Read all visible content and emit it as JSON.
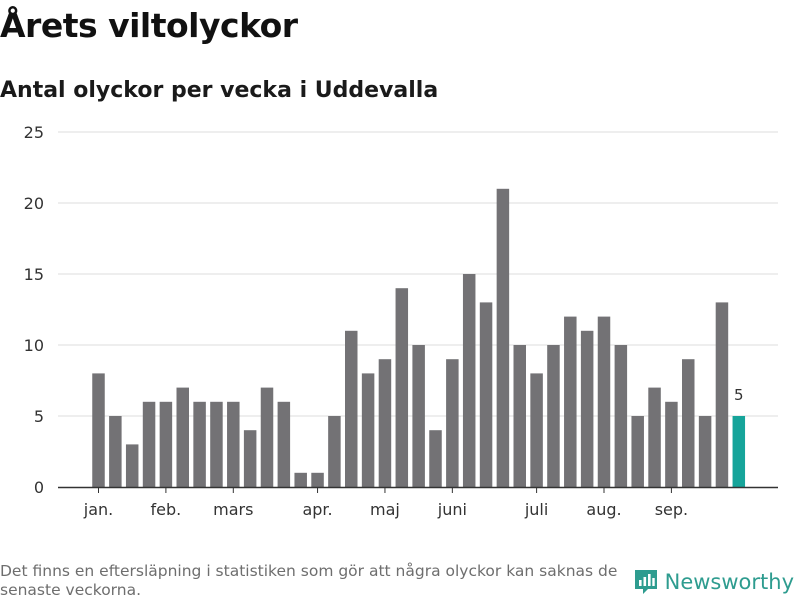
{
  "header": {
    "title": "Årets viltolyckor",
    "subtitle": "Antal olyckor per vecka i Uddevalla"
  },
  "footer": {
    "note": "Det finns en eftersläpning i statistiken som gör att några olyckor kan saknas de senaste veckorna.",
    "brand": "Newsworthy"
  },
  "colors": {
    "bar": "#737275",
    "highlight": "#16a49a",
    "grid": "#dddddd",
    "axis": "#333333",
    "brand": "#2e9c8f"
  },
  "chart_data": {
    "type": "bar",
    "title": "Antal olyckor per vecka i Uddevalla",
    "x_unit": "week",
    "values": [
      8,
      5,
      3,
      6,
      6,
      7,
      6,
      6,
      6,
      4,
      7,
      6,
      1,
      1,
      5,
      11,
      8,
      9,
      14,
      10,
      4,
      9,
      15,
      13,
      21,
      10,
      8,
      10,
      12,
      11,
      12,
      10,
      5,
      7,
      6,
      9,
      5,
      13,
      5
    ],
    "highlight_index": 38,
    "highlight_label": "5",
    "month_labels": [
      {
        "label": "jan.",
        "week": 1
      },
      {
        "label": "feb.",
        "week": 5
      },
      {
        "label": "mars",
        "week": 9
      },
      {
        "label": "apr.",
        "week": 14
      },
      {
        "label": "maj",
        "week": 18
      },
      {
        "label": "juni",
        "week": 22
      },
      {
        "label": "juli",
        "week": 27
      },
      {
        "label": "aug.",
        "week": 31
      },
      {
        "label": "sep.",
        "week": 35
      }
    ],
    "ylim": [
      0,
      25
    ],
    "yticks": [
      0,
      5,
      10,
      15,
      20,
      25
    ],
    "grid": true,
    "legend": "none"
  }
}
